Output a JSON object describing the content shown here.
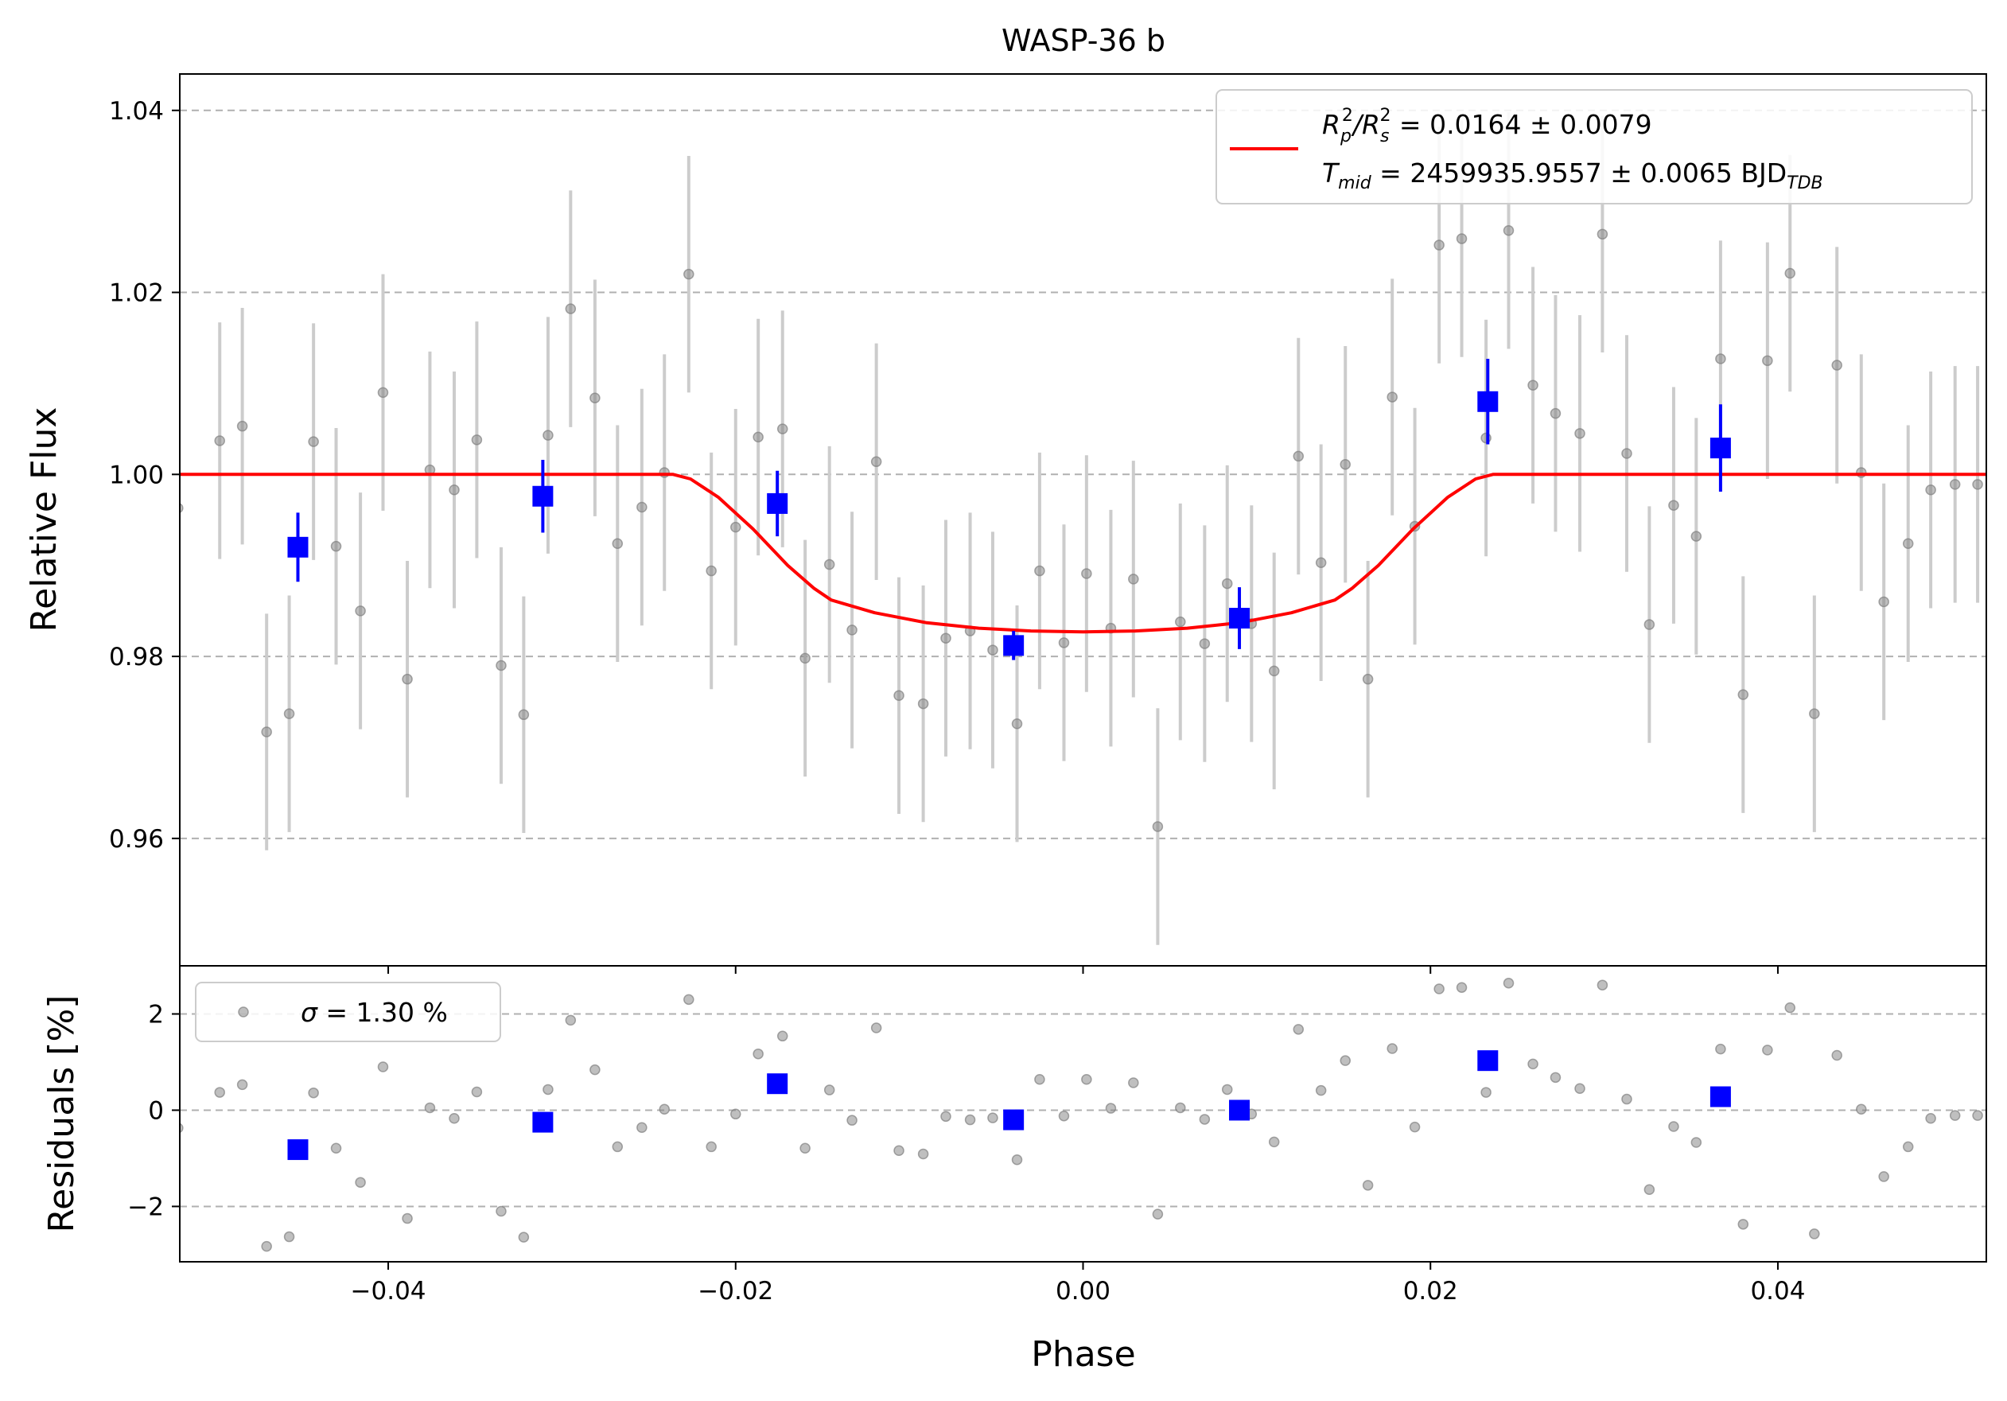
{
  "chart_data": [
    {
      "type": "scatter",
      "panel": "main",
      "title": "WASP-36 b",
      "xlabel": "",
      "ylabel": "Relative Flux",
      "xlim": [
        -0.052,
        0.052
      ],
      "ylim": [
        0.946,
        1.044
      ],
      "xticks": [
        -0.04,
        -0.02,
        0.0,
        0.02,
        0.04
      ],
      "yticks": [
        0.96,
        0.98,
        1.0,
        1.02,
        1.04
      ],
      "yticklabels": [
        "0.96",
        "0.98",
        "1.00",
        "1.02",
        "1.04"
      ],
      "grid": "horizontal dashed",
      "legend_position": "top-right",
      "legend": {
        "fit_label_line1": [
          "R",
          "p",
          "2",
          "/R",
          "s",
          "2",
          " = 0.0164 ± 0.0079"
        ],
        "fit_label_line2": [
          "T",
          "mid",
          " = 2459935.9557 ± 0.0065 BJD",
          "TDB"
        ]
      },
      "colors": {
        "data": "#808080",
        "errorbar": "#cccccc",
        "binned": "#0000ff",
        "model": "#ff0000"
      },
      "series": [
        {
          "kind": "data",
          "x": [
            -0.0521,
            -0.0497,
            -0.0484,
            -0.047,
            -0.0457,
            -0.0443,
            -0.043,
            -0.0416,
            -0.0403,
            -0.0389,
            -0.0376,
            -0.0362,
            -0.0349,
            -0.0335,
            -0.0322,
            -0.0308,
            -0.0295,
            -0.0281,
            -0.0268,
            -0.0254,
            -0.0241,
            -0.0227,
            -0.0214,
            -0.02,
            -0.0187,
            -0.0173,
            -0.016,
            -0.0146,
            -0.0133,
            -0.0119,
            -0.0106,
            -0.0092,
            -0.0079,
            -0.0065,
            -0.0052,
            -0.0038,
            -0.0025,
            -0.0011,
            0.0002,
            0.0016,
            0.0029,
            0.0043,
            0.0056,
            0.007,
            0.0083,
            0.0097,
            0.011,
            0.0124,
            0.0137,
            0.0151,
            0.0164,
            0.0178,
            0.0191,
            0.0205,
            0.0218,
            0.0232,
            0.0245,
            0.0259,
            0.0272,
            0.0286,
            0.0299,
            0.0313,
            0.0326,
            0.034,
            0.0353,
            0.0367,
            0.038,
            0.0394,
            0.0407,
            0.0421,
            0.0434,
            0.0448,
            0.0461,
            0.0475,
            0.0488,
            0.0502,
            0.0515
          ],
          "y": [
            0.9963,
            1.0037,
            1.0053,
            0.9717,
            0.9737,
            1.0036,
            0.9921,
            0.985,
            1.009,
            0.9775,
            1.0005,
            0.9983,
            1.0038,
            0.979,
            0.9736,
            1.0043,
            1.0182,
            1.0084,
            0.9924,
            0.9964,
            1.0002,
            1.022,
            0.9894,
            0.9942,
            1.0041,
            1.005,
            0.9798,
            0.9901,
            0.9829,
            1.0014,
            0.9757,
            0.9748,
            0.982,
            0.9828,
            0.9807,
            0.9726,
            0.9894,
            0.9815,
            0.9891,
            0.9831,
            0.9885,
            0.9613,
            0.9838,
            0.9814,
            0.988,
            0.9836,
            0.9784,
            1.002,
            0.9903,
            1.0011,
            0.9775,
            1.0085,
            0.9943,
            1.0252,
            1.0259,
            1.004,
            1.0268,
            1.0098,
            1.0067,
            1.0045,
            1.0264,
            1.0023,
            0.9835,
            0.9966,
            0.9932,
            1.0127,
            0.9758,
            1.0125,
            1.0221,
            0.9737,
            1.012,
            1.0002,
            0.986,
            0.9924,
            0.9983,
            0.9989,
            0.9989
          ],
          "yerr": [
            0.013,
            0.013,
            0.013,
            0.013,
            0.013,
            0.013,
            0.013,
            0.013,
            0.013,
            0.013,
            0.013,
            0.013,
            0.013,
            0.013,
            0.013,
            0.013,
            0.013,
            0.013,
            0.013,
            0.013,
            0.013,
            0.013,
            0.013,
            0.013,
            0.013,
            0.013,
            0.013,
            0.013,
            0.013,
            0.013,
            0.013,
            0.013,
            0.013,
            0.013,
            0.013,
            0.013,
            0.013,
            0.013,
            0.013,
            0.013,
            0.013,
            0.013,
            0.013,
            0.013,
            0.013,
            0.013,
            0.013,
            0.013,
            0.013,
            0.013,
            0.013,
            0.013,
            0.013,
            0.013,
            0.013,
            0.013,
            0.013,
            0.013,
            0.013,
            0.013,
            0.013,
            0.013,
            0.013,
            0.013,
            0.013,
            0.013,
            0.013,
            0.013,
            0.013,
            0.013,
            0.013,
            0.013,
            0.013,
            0.013,
            0.013,
            0.013,
            0.013
          ]
        },
        {
          "kind": "binned",
          "x": [
            -0.0452,
            -0.0311,
            -0.0176,
            -0.004,
            0.009,
            0.0233,
            0.0367
          ],
          "y": [
            0.992,
            0.9976,
            0.9968,
            0.9812,
            0.9842,
            1.008,
            1.0029
          ],
          "yerr": [
            0.0038,
            0.004,
            0.0036,
            0.0016,
            0.0034,
            0.0047,
            0.0048
          ]
        },
        {
          "kind": "model",
          "x": [
            -0.052,
            -0.0236,
            -0.0226,
            -0.021,
            -0.019,
            -0.017,
            -0.0155,
            -0.0145,
            -0.012,
            -0.009,
            -0.006,
            -0.003,
            0.0,
            0.003,
            0.006,
            0.009,
            0.012,
            0.0145,
            0.0155,
            0.017,
            0.019,
            0.021,
            0.0226,
            0.0236,
            0.052
          ],
          "y": [
            1.0,
            1.0,
            0.9995,
            0.9975,
            0.994,
            0.99,
            0.9875,
            0.9862,
            0.9848,
            0.9837,
            0.9831,
            0.9828,
            0.9827,
            0.9828,
            0.9831,
            0.9837,
            0.9848,
            0.9862,
            0.9875,
            0.99,
            0.994,
            0.9975,
            0.9995,
            1.0,
            1.0
          ]
        }
      ]
    },
    {
      "type": "scatter",
      "panel": "residuals",
      "xlabel": "Phase",
      "ylabel": "Residuals [%]",
      "xlim": [
        -0.052,
        0.052
      ],
      "ylim": [
        -3.15,
        3.0
      ],
      "xticks": [
        -0.04,
        -0.02,
        0.0,
        0.02,
        0.04
      ],
      "xticklabels": [
        "−0.04",
        "−0.02",
        "0.00",
        "0.02",
        "0.04"
      ],
      "yticks": [
        -2,
        0,
        2
      ],
      "yticklabels": [
        "−2",
        "0",
        "2"
      ],
      "grid": "horizontal dashed",
      "legend_position": "top-left",
      "legend": {
        "sigma_label": [
          "σ",
          " = 1.30 %"
        ]
      },
      "series": [
        {
          "kind": "data",
          "x": [
            -0.0521,
            -0.0497,
            -0.0484,
            -0.047,
            -0.0457,
            -0.0443,
            -0.043,
            -0.0416,
            -0.0403,
            -0.0389,
            -0.0376,
            -0.0362,
            -0.0349,
            -0.0335,
            -0.0322,
            -0.0308,
            -0.0295,
            -0.0281,
            -0.0268,
            -0.0254,
            -0.0241,
            -0.0227,
            -0.0214,
            -0.02,
            -0.0187,
            -0.0173,
            -0.016,
            -0.0146,
            -0.0133,
            -0.0119,
            -0.0106,
            -0.0092,
            -0.0079,
            -0.0065,
            -0.0052,
            -0.0038,
            -0.0025,
            -0.0011,
            0.0002,
            0.0016,
            0.0029,
            0.0043,
            0.0056,
            0.007,
            0.0083,
            0.0097,
            0.011,
            0.0124,
            0.0137,
            0.0151,
            0.0164,
            0.0178,
            0.0191,
            0.0205,
            0.0218,
            0.0232,
            0.0245,
            0.0259,
            0.0272,
            0.0286,
            0.0299,
            0.0313,
            0.0326,
            0.034,
            0.0353,
            0.0367,
            0.038,
            0.0394,
            0.0407,
            0.0421,
            0.0434,
            0.0448,
            0.0461,
            0.0475,
            0.0488,
            0.0502,
            0.0515
          ],
          "y": [
            -0.37,
            0.37,
            0.53,
            -2.83,
            -2.63,
            0.36,
            -0.79,
            -1.5,
            0.9,
            -2.25,
            0.05,
            -0.17,
            0.38,
            -2.1,
            -2.64,
            0.43,
            1.87,
            0.84,
            -0.76,
            -0.36,
            0.02,
            2.3,
            -0.76,
            -0.08,
            1.17,
            1.54,
            -0.79,
            0.42,
            -0.21,
            1.71,
            -0.84,
            -0.91,
            -0.13,
            -0.2,
            -0.16,
            -1.03,
            0.64,
            -0.12,
            0.64,
            0.04,
            0.57,
            -2.16,
            0.05,
            -0.19,
            0.43,
            -0.08,
            -0.66,
            1.68,
            0.41,
            1.03,
            -1.56,
            1.28,
            -0.35,
            2.52,
            2.55,
            0.37,
            2.64,
            0.96,
            0.68,
            0.45,
            2.6,
            0.23,
            -1.65,
            -0.34,
            -0.67,
            1.27,
            -2.37,
            1.25,
            2.13,
            -2.57,
            1.14,
            0.02,
            -1.38,
            -0.76,
            -0.17,
            -0.11,
            -0.11
          ]
        },
        {
          "kind": "binned",
          "x": [
            -0.0452,
            -0.0311,
            -0.0176,
            -0.004,
            0.009,
            0.0233,
            0.0367
          ],
          "y": [
            -0.82,
            -0.25,
            0.55,
            -0.2,
            0.0,
            1.03,
            0.28
          ]
        }
      ]
    }
  ]
}
